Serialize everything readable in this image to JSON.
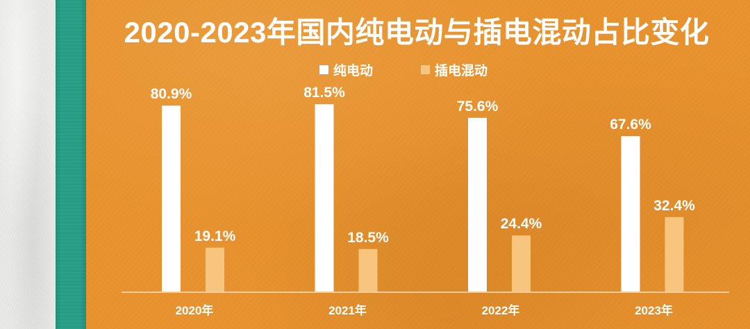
{
  "theme": {
    "background": "#e7922e",
    "stripe": "#279d86",
    "paper": "#e8e8e6",
    "text": "#ffffff"
  },
  "chart_data": {
    "type": "bar",
    "title": "2020-2023年国内纯电动与插电混动占比变化",
    "xlabel": "",
    "ylabel": "",
    "categories": [
      "2020年",
      "2021年",
      "2022年",
      "2023年"
    ],
    "series": [
      {
        "name": "纯电动",
        "color": "#ffffff",
        "values": [
          80.9,
          81.5,
          75.6,
          67.6
        ],
        "labels": [
          "80.9%",
          "81.5%",
          "75.6%",
          "67.6%"
        ]
      },
      {
        "name": "插电混动",
        "color": "#f7c57e",
        "values": [
          19.1,
          18.5,
          24.4,
          32.4
        ],
        "labels": [
          "19.1%",
          "18.5%",
          "24.4%",
          "32.4%"
        ]
      }
    ],
    "unit": "%",
    "ylim": [
      0,
      100
    ],
    "grid": false,
    "legend_position": "top-center"
  }
}
